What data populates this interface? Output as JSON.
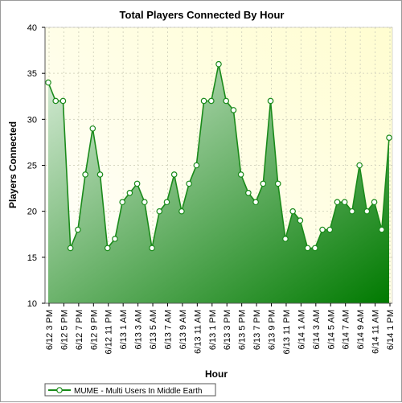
{
  "chart_data": {
    "type": "area",
    "title": "Total Players Connected By Hour",
    "xlabel": "Hour",
    "ylabel": "Players Connected",
    "ylim": [
      10,
      40
    ],
    "yticks": [
      10,
      15,
      20,
      25,
      30,
      35,
      40
    ],
    "grid": true,
    "legend_position": "bottom-left",
    "colors": {
      "line": "#1a8a1a",
      "fill_dark": "#007a00",
      "fill_light": "#d8ecd8",
      "plot_bg_top": "#fffdd0",
      "plot_bg_bottom": "#ffffff",
      "marker_fill": "#ffffff"
    },
    "x_tick_labels": [
      "6/12 3 PM",
      "6/12 5 PM",
      "6/12 7 PM",
      "6/12 9 PM",
      "6/12 11 PM",
      "6/13 1 AM",
      "6/13 3 AM",
      "6/13 5 AM",
      "6/13 7 AM",
      "6/13 9 AM",
      "6/13 11 AM",
      "6/13 1 PM",
      "6/13 3 PM",
      "6/13 5 PM",
      "6/13 7 PM",
      "6/13 9 PM",
      "6/13 11 PM",
      "6/14 1 AM",
      "6/14 3 AM",
      "6/14 5 AM",
      "6/14 7 AM",
      "6/14 9 AM",
      "6/14 11 AM",
      "6/14 1 PM"
    ],
    "x_start": "6/12 2 PM",
    "x_end": "6/14 2 PM",
    "series": [
      {
        "name": "MUME - Multi Users In Middle Earth",
        "values": [
          34,
          32,
          32,
          16,
          18,
          24,
          29,
          24,
          16,
          17,
          21,
          22,
          23,
          21,
          16,
          20,
          21,
          24,
          20,
          23,
          25,
          32,
          32,
          36,
          32,
          31,
          24,
          22,
          21,
          23,
          32,
          23,
          17,
          20,
          19,
          16,
          16,
          18,
          18,
          21,
          21,
          20,
          25,
          20,
          21,
          18,
          28
        ]
      }
    ]
  }
}
